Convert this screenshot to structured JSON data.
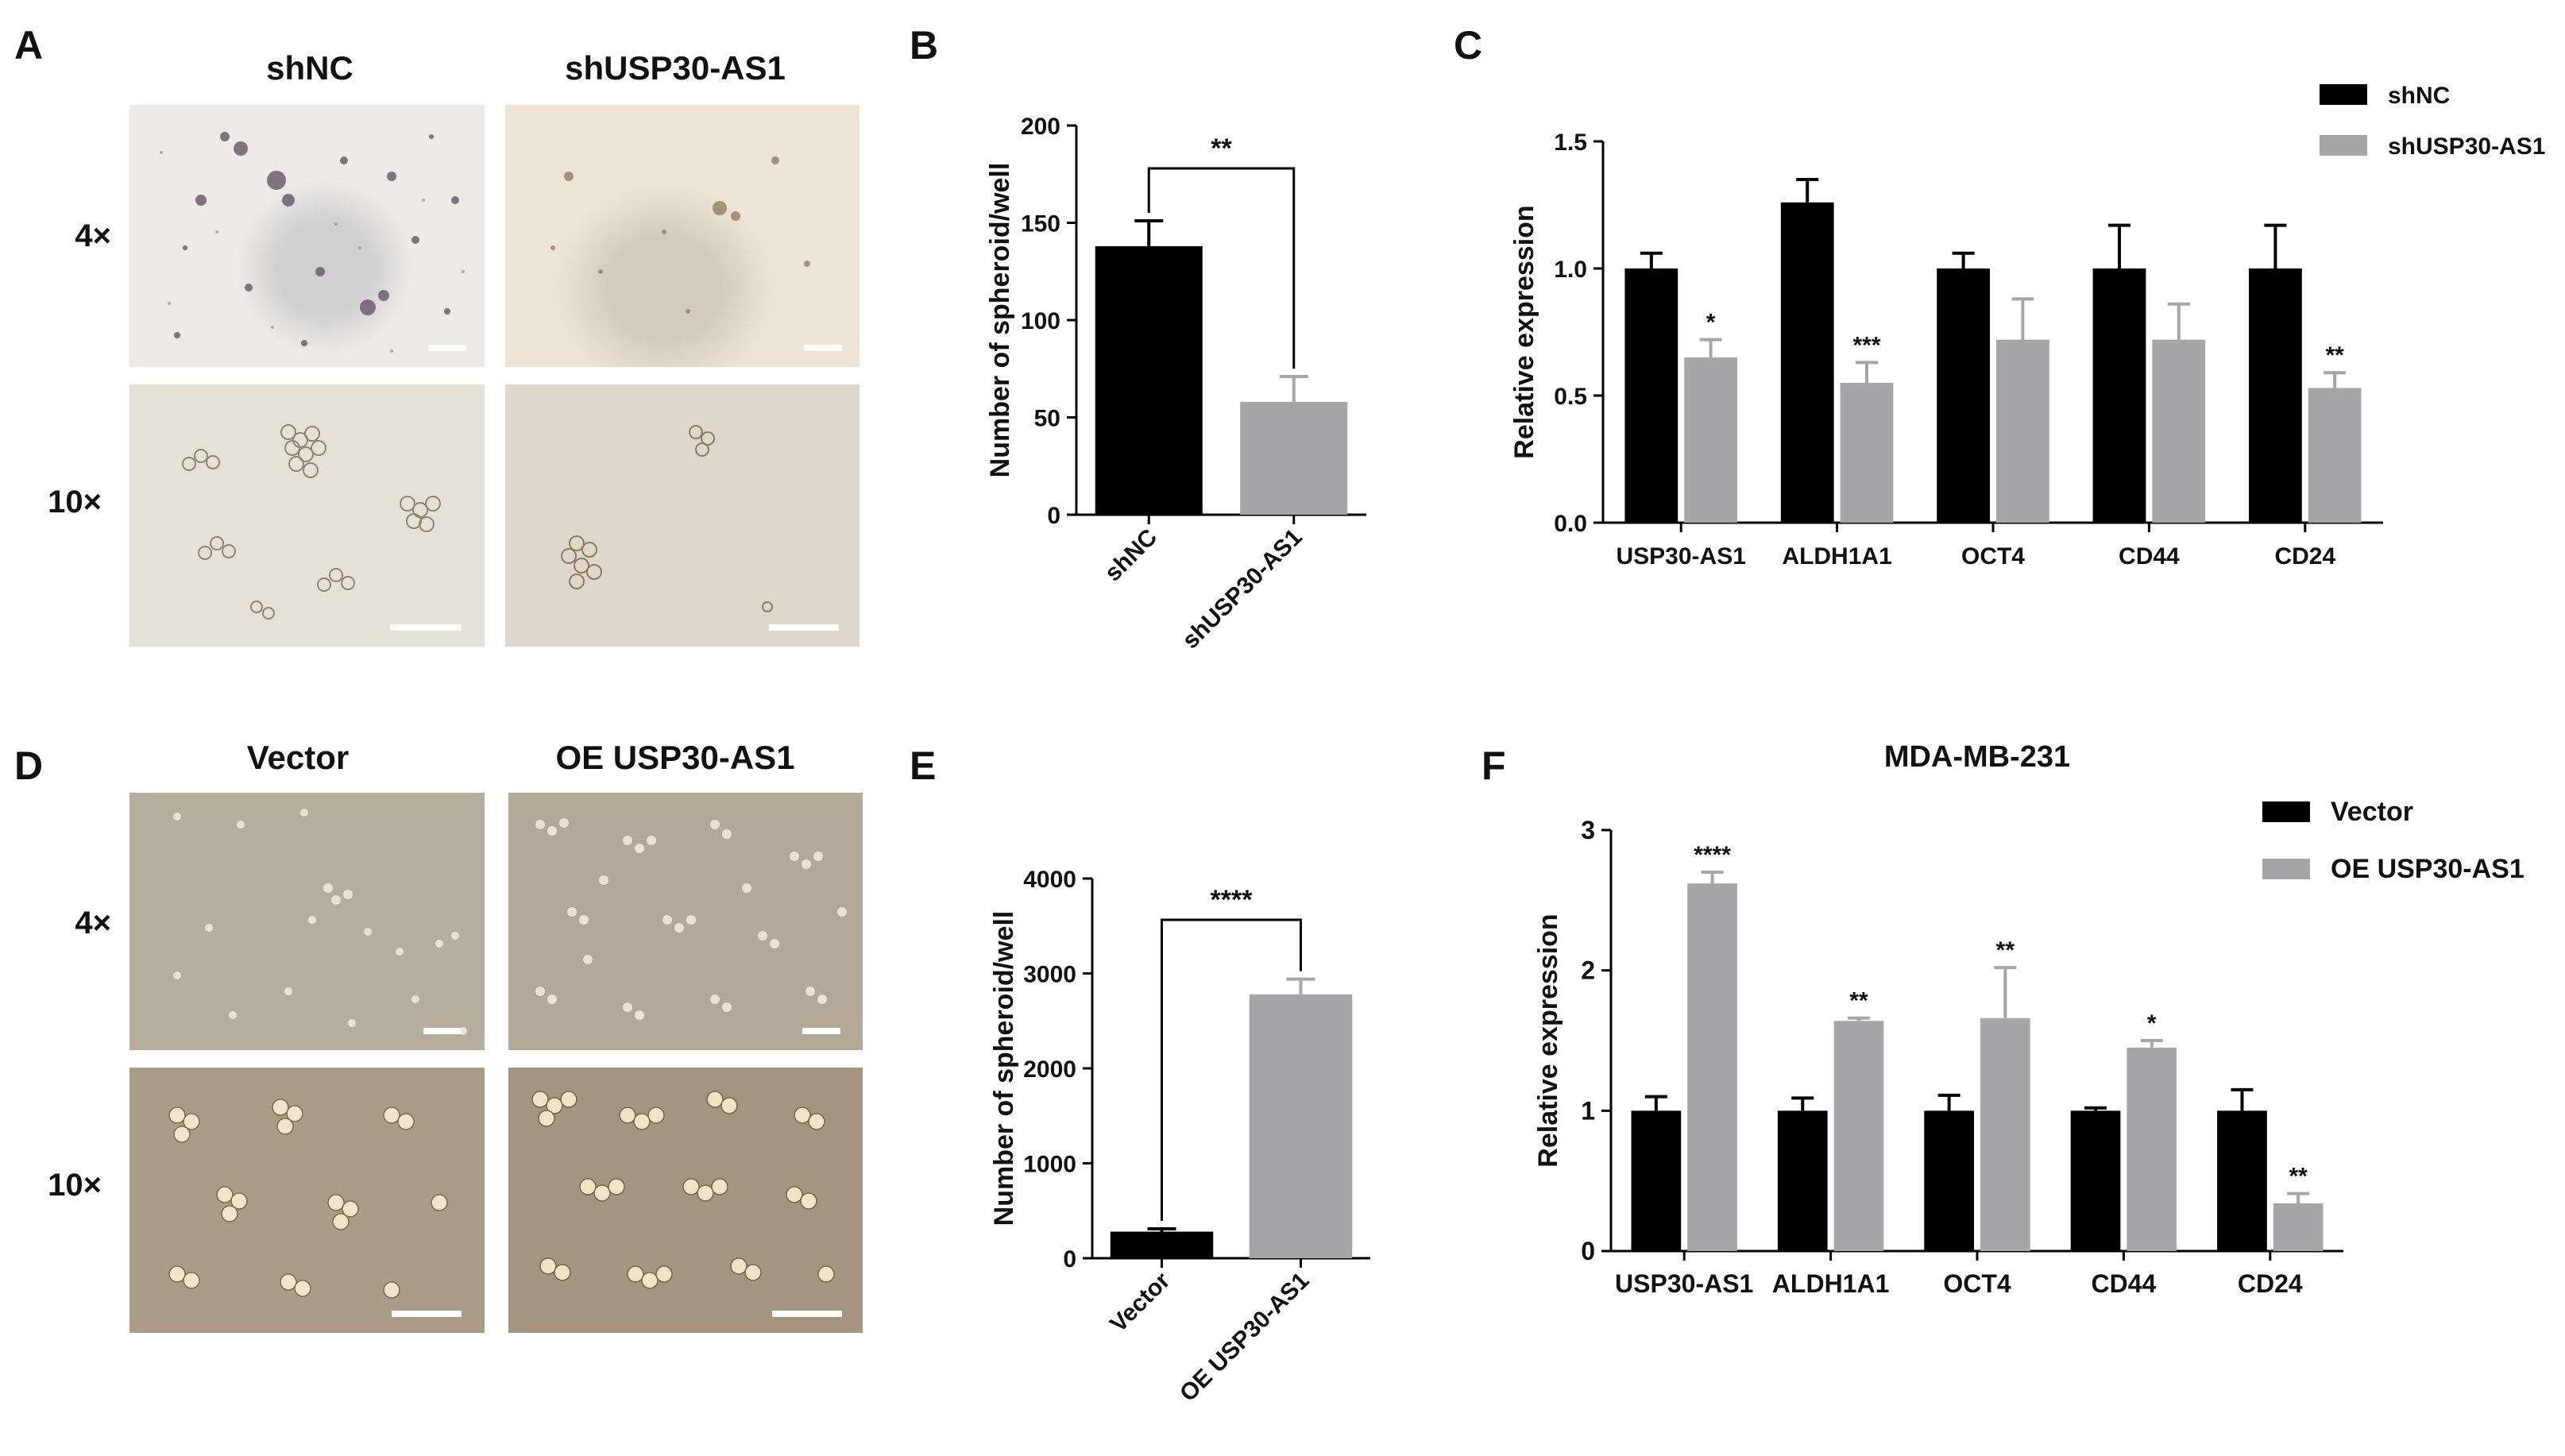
{
  "panels": {
    "A": {
      "letter": "A",
      "columns": [
        "shNC",
        "shUSP30-AS1"
      ],
      "rows": [
        "4×",
        "10×"
      ]
    },
    "B": {
      "letter": "B"
    },
    "C": {
      "letter": "C"
    },
    "D": {
      "letter": "D",
      "columns": [
        "Vector",
        "OE USP30-AS1"
      ],
      "rows": [
        "4×",
        "10×"
      ]
    },
    "E": {
      "letter": "E"
    },
    "F": {
      "letter": "F"
    }
  },
  "colors": {
    "group1": "#000000",
    "group2": "#a6a6a8",
    "axis": "#000000"
  },
  "chart_data": [
    {
      "panel": "B",
      "type": "bar",
      "categories": [
        "shNC",
        "shUSP30-AS1"
      ],
      "values": [
        138,
        58
      ],
      "errors": [
        13,
        13
      ],
      "colors": [
        "#000000",
        "#a6a6a8"
      ],
      "ylabel": "Number of spheroid/well",
      "ylim": [
        0,
        200
      ],
      "yticks": [
        0,
        50,
        100,
        150,
        200
      ],
      "significance": "**"
    },
    {
      "panel": "C",
      "type": "bar",
      "title": "",
      "categories": [
        "USP30-AS1",
        "ALDH1A1",
        "OCT4",
        "CD44",
        "CD24"
      ],
      "series": [
        {
          "name": "shNC",
          "values": [
            1.0,
            1.26,
            1.0,
            1.0,
            1.0
          ],
          "errors": [
            0.06,
            0.09,
            0.06,
            0.17,
            0.17
          ],
          "marks": [
            "",
            "",
            "",
            "",
            ""
          ]
        },
        {
          "name": "shUSP30-AS1",
          "values": [
            0.65,
            0.55,
            0.72,
            0.72,
            0.53
          ],
          "errors": [
            0.07,
            0.08,
            0.16,
            0.14,
            0.06
          ],
          "marks": [
            "*",
            "***",
            "",
            "",
            "**"
          ]
        }
      ],
      "ylabel": "Relative expression",
      "ylim": [
        0,
        1.5
      ],
      "yticks": [
        "0.0",
        "0.5",
        "1.0",
        "1.5"
      ],
      "legend": "top-right"
    },
    {
      "panel": "E",
      "type": "bar",
      "categories": [
        "Vector",
        "OE USP30-AS1"
      ],
      "values": [
        280,
        2780
      ],
      "errors": [
        30,
        160
      ],
      "colors": [
        "#000000",
        "#a6a6a8"
      ],
      "ylabel": "Number of spheroid/well",
      "ylim": [
        0,
        4000
      ],
      "yticks": [
        0,
        1000,
        2000,
        3000,
        4000
      ],
      "significance": "****"
    },
    {
      "panel": "F",
      "type": "bar",
      "title": "MDA-MB-231",
      "categories": [
        "USP30-AS1",
        "ALDH1A1",
        "OCT4",
        "CD44",
        "CD24"
      ],
      "series": [
        {
          "name": "Vector",
          "values": [
            1.0,
            1.0,
            1.0,
            1.0,
            1.0
          ],
          "errors": [
            0.1,
            0.09,
            0.11,
            0.02,
            0.15
          ],
          "marks": [
            "",
            "",
            "",
            "",
            ""
          ]
        },
        {
          "name": "OE USP30-AS1",
          "values": [
            2.62,
            1.64,
            1.66,
            1.45,
            0.34
          ],
          "errors": [
            0.08,
            0.02,
            0.36,
            0.05,
            0.07
          ],
          "marks": [
            "****",
            "**",
            "**",
            "*",
            "**"
          ]
        }
      ],
      "ylabel": "Relative expression",
      "ylim": [
        0,
        3
      ],
      "yticks": [
        "0",
        "1",
        "2",
        "3"
      ],
      "legend": "top-right"
    }
  ]
}
